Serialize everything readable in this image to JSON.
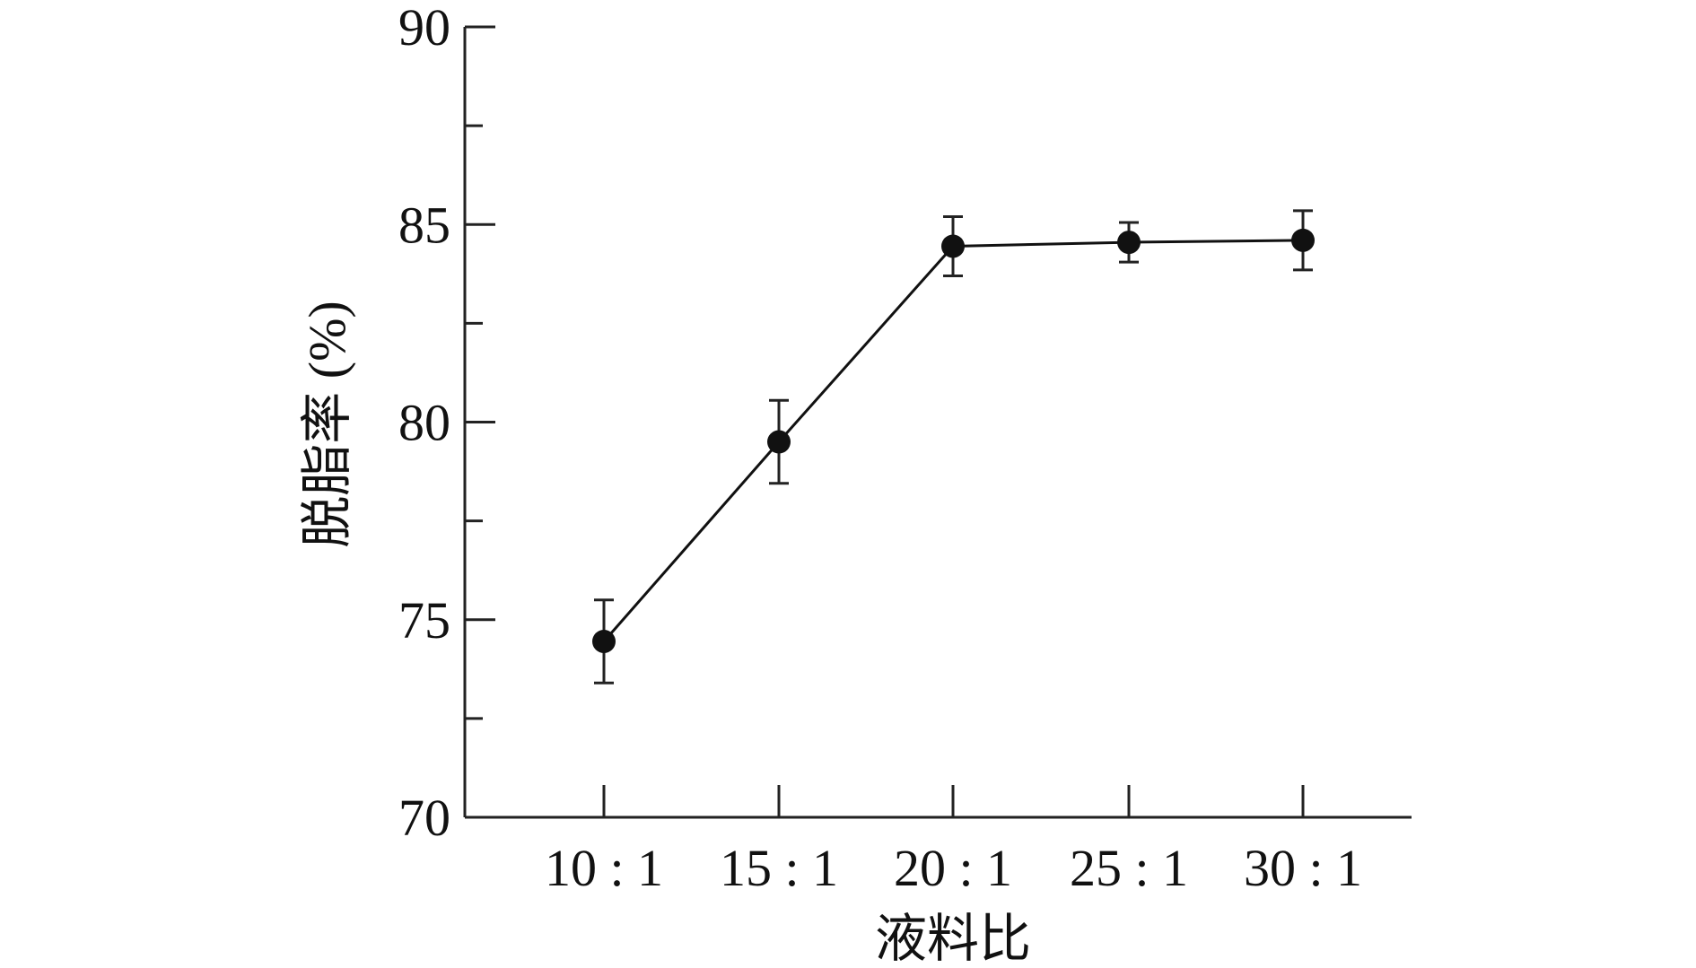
{
  "chart_data": {
    "type": "line",
    "title": "",
    "xlabel": "液料比",
    "ylabel": "脱脂率 (%)",
    "categories": [
      "10:1",
      "15:1",
      "20:1",
      "25:1",
      "30:1"
    ],
    "series": [
      {
        "values": [
          74.45,
          79.5,
          84.45,
          84.55,
          84.6
        ],
        "errors": [
          1.05,
          1.05,
          0.75,
          0.5,
          0.75
        ]
      }
    ],
    "ylim": [
      70,
      90
    ],
    "yticks": [
      70,
      75,
      80,
      85,
      90
    ],
    "yminor_ticks": [
      72.5,
      77.5,
      82.5,
      87.5
    ],
    "grid": false,
    "legend": "none",
    "colors": {
      "line": "#111111",
      "marker": "#111111"
    }
  }
}
